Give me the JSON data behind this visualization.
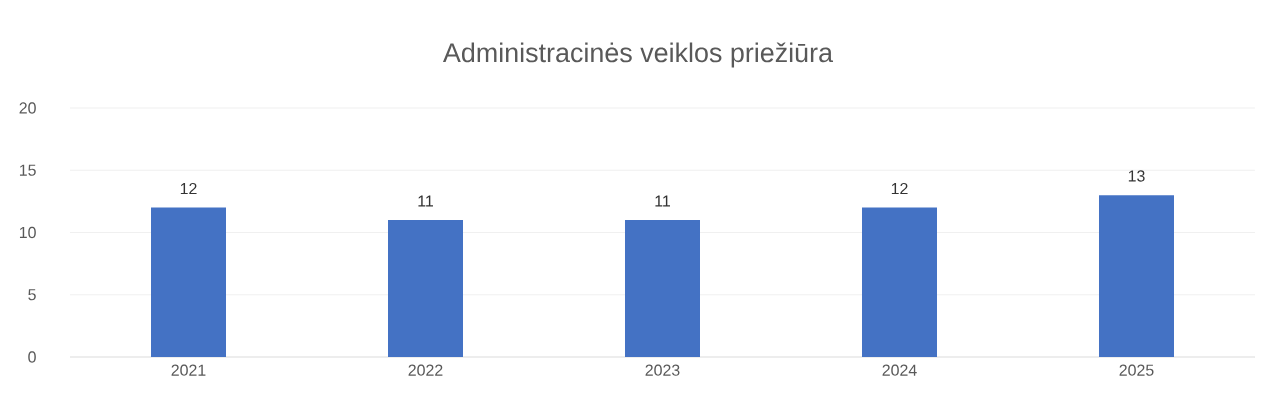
{
  "chart_data": {
    "type": "bar",
    "title": "Administracinės veiklos priežiūra",
    "categories": [
      "2021",
      "2022",
      "2023",
      "2024",
      "2025"
    ],
    "values": [
      12,
      11,
      11,
      12,
      13
    ],
    "color": "#4472c4",
    "ylim": [
      0,
      20
    ],
    "yticks": [
      0,
      5,
      10,
      15,
      20
    ],
    "grid": "y",
    "data_labels": true
  }
}
